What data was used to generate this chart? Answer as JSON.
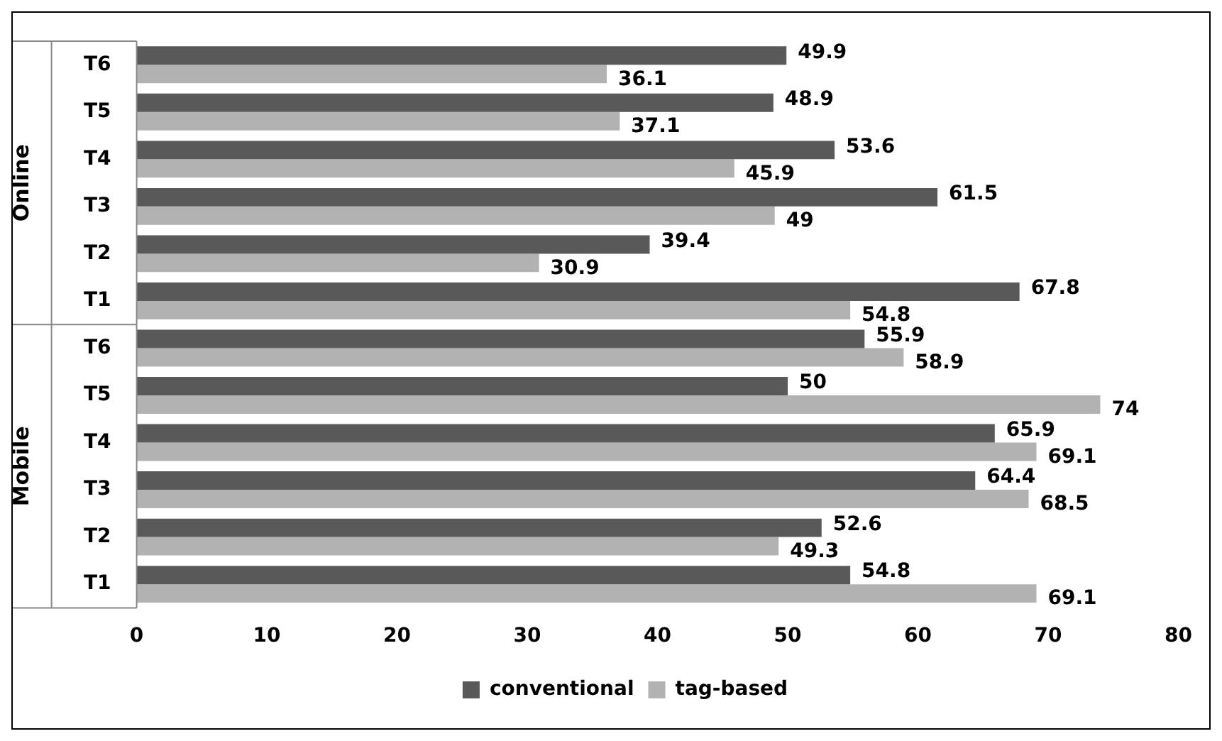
{
  "chart_data": {
    "type": "bar",
    "orientation": "horizontal",
    "categories": [
      "T6",
      "T5",
      "T4",
      "T3",
      "T2",
      "T1",
      "T6",
      "T5",
      "T4",
      "T3",
      "T2",
      "T1"
    ],
    "series": [
      {
        "name": "conventional",
        "color": "#595959",
        "values": [
          49.9,
          48.9,
          53.6,
          61.5,
          39.4,
          67.8,
          55.9,
          50,
          65.9,
          64.4,
          52.6,
          54.8
        ]
      },
      {
        "name": "tag-based",
        "color": "#b2b2b2",
        "values": [
          36.1,
          37.1,
          45.9,
          49,
          30.9,
          54.8,
          58.9,
          74,
          69.1,
          68.5,
          49.3,
          69.1
        ]
      }
    ],
    "annotations": [
      "Online",
      "Mobile"
    ],
    "xlim": [
      0,
      80
    ],
    "xticks": [
      0,
      10,
      20,
      30,
      40,
      50,
      60,
      70,
      80
    ],
    "grid": false,
    "legend": "bottom",
    "data_labels": true
  }
}
